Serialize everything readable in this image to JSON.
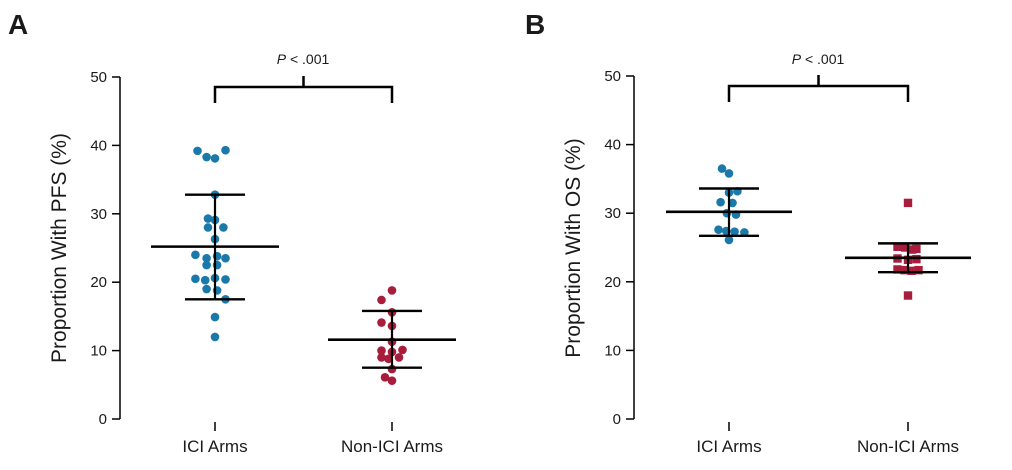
{
  "colors": {
    "ici": "#1a78aa",
    "non_ici": "#a81c3c",
    "axis": "#000000"
  },
  "chart_data": [
    {
      "type": "scatter",
      "panel_label": "A",
      "ylabel": "Proportion With PFS (%)",
      "ylim": [
        0,
        50
      ],
      "yticks": [
        0,
        10,
        20,
        30,
        40,
        50
      ],
      "categories": [
        "ICI Arms",
        "Non-ICI Arms"
      ],
      "grid": false,
      "significance": {
        "prefix": "P",
        "text": " < .001",
        "between": [
          "ICI Arms",
          "Non-ICI Arms"
        ]
      },
      "series": [
        {
          "category": "ICI Arms",
          "marker": "circle",
          "color_key": "ici",
          "points": [
            {
              "offset": -0.25,
              "y": 39.2
            },
            {
              "offset": -0.12,
              "y": 38.3
            },
            {
              "offset": 0.0,
              "y": 38.1
            },
            {
              "offset": 0.15,
              "y": 39.3
            },
            {
              "offset": 0.0,
              "y": 32.8
            },
            {
              "offset": -0.1,
              "y": 29.3
            },
            {
              "offset": 0.0,
              "y": 29.1
            },
            {
              "offset": -0.1,
              "y": 28.0
            },
            {
              "offset": 0.12,
              "y": 28.0
            },
            {
              "offset": 0.0,
              "y": 26.3
            },
            {
              "offset": -0.28,
              "y": 24.0
            },
            {
              "offset": -0.12,
              "y": 23.5
            },
            {
              "offset": 0.03,
              "y": 23.8
            },
            {
              "offset": 0.15,
              "y": 23.5
            },
            {
              "offset": -0.12,
              "y": 22.5
            },
            {
              "offset": 0.03,
              "y": 22.5
            },
            {
              "offset": -0.28,
              "y": 20.5
            },
            {
              "offset": -0.14,
              "y": 20.3
            },
            {
              "offset": 0.0,
              "y": 20.6
            },
            {
              "offset": 0.15,
              "y": 20.4
            },
            {
              "offset": -0.12,
              "y": 19.0
            },
            {
              "offset": 0.03,
              "y": 18.8
            },
            {
              "offset": 0.15,
              "y": 17.5
            },
            {
              "offset": 0.0,
              "y": 14.9
            },
            {
              "offset": 0.0,
              "y": 12.0
            }
          ],
          "mean": 25.2,
          "sd_low": 17.5,
          "sd_high": 32.8
        },
        {
          "category": "Non-ICI Arms",
          "marker": "circle",
          "color_key": "non_ici",
          "points": [
            {
              "offset": 0.0,
              "y": 18.8
            },
            {
              "offset": -0.15,
              "y": 17.4
            },
            {
              "offset": 0.0,
              "y": 15.6
            },
            {
              "offset": -0.15,
              "y": 14.1
            },
            {
              "offset": 0.0,
              "y": 13.6
            },
            {
              "offset": 0.0,
              "y": 11.3
            },
            {
              "offset": -0.15,
              "y": 10.0
            },
            {
              "offset": 0.0,
              "y": 9.8
            },
            {
              "offset": 0.15,
              "y": 10.1
            },
            {
              "offset": -0.15,
              "y": 9.0
            },
            {
              "offset": -0.05,
              "y": 8.8
            },
            {
              "offset": 0.1,
              "y": 9.0
            },
            {
              "offset": 0.0,
              "y": 7.3
            },
            {
              "offset": -0.1,
              "y": 6.1
            },
            {
              "offset": 0.0,
              "y": 5.6
            }
          ],
          "mean": 11.6,
          "sd_low": 7.5,
          "sd_high": 15.8
        }
      ]
    },
    {
      "type": "scatter",
      "panel_label": "B",
      "ylabel": "Proportion With OS (%)",
      "ylim": [
        0,
        50
      ],
      "yticks": [
        0,
        10,
        20,
        30,
        40,
        50
      ],
      "categories": [
        "ICI Arms",
        "Non-ICI Arms"
      ],
      "grid": false,
      "significance": {
        "prefix": "P",
        "text": " < .001",
        "between": [
          "ICI Arms",
          "Non-ICI Arms"
        ]
      },
      "series": [
        {
          "category": "ICI Arms",
          "marker": "circle",
          "color_key": "ici",
          "points": [
            {
              "offset": -0.1,
              "y": 36.5
            },
            {
              "offset": 0.0,
              "y": 35.8
            },
            {
              "offset": 0.0,
              "y": 33.0
            },
            {
              "offset": 0.12,
              "y": 33.2
            },
            {
              "offset": -0.12,
              "y": 31.6
            },
            {
              "offset": 0.05,
              "y": 31.5
            },
            {
              "offset": -0.03,
              "y": 30.0
            },
            {
              "offset": 0.1,
              "y": 29.8
            },
            {
              "offset": -0.15,
              "y": 27.6
            },
            {
              "offset": -0.04,
              "y": 27.4
            },
            {
              "offset": 0.08,
              "y": 27.3
            },
            {
              "offset": 0.22,
              "y": 27.2
            },
            {
              "offset": 0.0,
              "y": 26.1
            }
          ],
          "mean": 30.2,
          "sd_low": 26.7,
          "sd_high": 33.6
        },
        {
          "category": "Non-ICI Arms",
          "marker": "square",
          "color_key": "non_ici",
          "points": [
            {
              "offset": 0.0,
              "y": 31.5
            },
            {
              "offset": -0.15,
              "y": 25.1
            },
            {
              "offset": -0.04,
              "y": 25.0
            },
            {
              "offset": 0.06,
              "y": 24.7
            },
            {
              "offset": 0.12,
              "y": 24.8
            },
            {
              "offset": -0.15,
              "y": 23.4
            },
            {
              "offset": 0.0,
              "y": 23.2
            },
            {
              "offset": 0.12,
              "y": 23.3
            },
            {
              "offset": -0.15,
              "y": 21.8
            },
            {
              "offset": -0.05,
              "y": 21.7
            },
            {
              "offset": 0.05,
              "y": 21.6
            },
            {
              "offset": 0.15,
              "y": 21.7
            },
            {
              "offset": 0.0,
              "y": 18.0
            }
          ],
          "mean": 23.5,
          "sd_low": 21.4,
          "sd_high": 25.6
        }
      ]
    }
  ]
}
